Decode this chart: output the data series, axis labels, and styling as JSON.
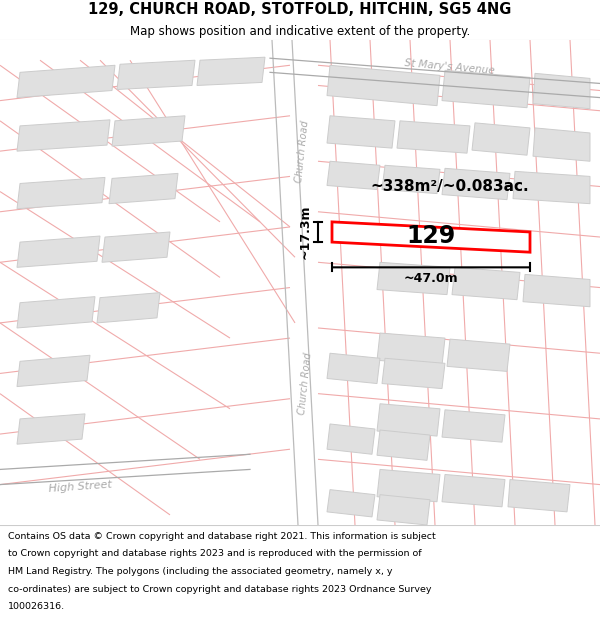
{
  "title": "129, CHURCH ROAD, STOTFOLD, HITCHIN, SG5 4NG",
  "subtitle": "Map shows position and indicative extent of the property.",
  "footer_line1": "Contains OS data © Crown copyright and database right 2021. This information is subject",
  "footer_line2": "to Crown copyright and database rights 2023 and is reproduced with the permission of",
  "footer_line3": "HM Land Registry. The polygons (including the associated geometry, namely x, y",
  "footer_line4": "co-ordinates) are subject to Crown copyright and database rights 2023 Ordnance Survey",
  "footer_line5": "100026316.",
  "map_bg": "#ffffff",
  "road_line_color": "#f0aaaa",
  "road_edge_color": "#ccaaaa",
  "building_color": "#e0e0e0",
  "building_edge_color": "#cccccc",
  "highlight_color": "#ff0000",
  "highlight_fill": "#ffffff",
  "road_label_color": "#aaaaaa",
  "dim_color": "#111111",
  "area_text": "~338m²/~0.083ac.",
  "width_text": "~47.0m",
  "height_text": "~17.3m",
  "plot_number": "129",
  "label_church_road": "Church Road",
  "label_st_marys": "St Mary's Avenue",
  "label_high_street": "High Street"
}
